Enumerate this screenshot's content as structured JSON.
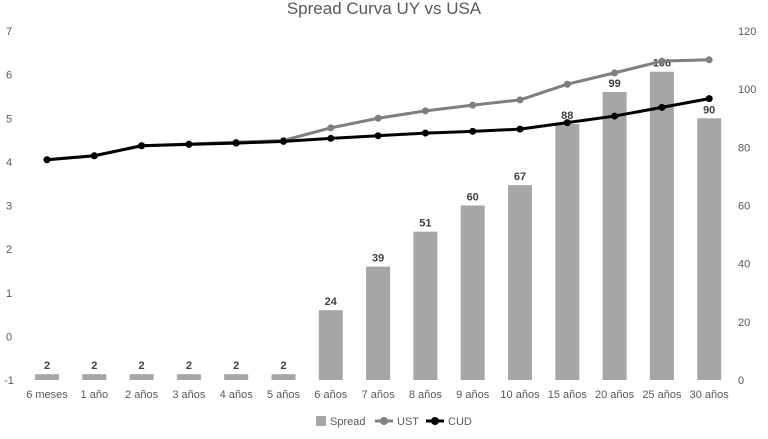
{
  "chart_data": {
    "type": "bar",
    "title": "Spread Curva UY vs USA",
    "categories": [
      "6 meses",
      "1 año",
      "2 años",
      "3 años",
      "4 años",
      "5 años",
      "6 años",
      "7 años",
      "8 años",
      "9 años",
      "10 años",
      "15 años",
      "20 años",
      "25 años",
      "30 años"
    ],
    "left_axis": {
      "ylim": [
        -1,
        7
      ],
      "ticks": [
        "-1",
        "0",
        "1",
        "2",
        "3",
        "4",
        "5",
        "6",
        "7"
      ]
    },
    "right_axis": {
      "ylim": [
        0,
        120
      ],
      "ticks": [
        "0",
        "20",
        "40",
        "60",
        "80",
        "100",
        "120"
      ]
    },
    "series": [
      {
        "name": "Spread",
        "kind": "bar",
        "axis": "right",
        "values": [
          2,
          2,
          2,
          2,
          2,
          2,
          24,
          39,
          51,
          60,
          67,
          88,
          99,
          106,
          90
        ],
        "labels": [
          "2",
          "2",
          "2",
          "2",
          "2",
          "2",
          "24",
          "39",
          "51",
          "60",
          "67",
          "88",
          "99",
          "106",
          "90"
        ],
        "color": "#a6a6a6"
      },
      {
        "name": "UST",
        "kind": "line",
        "axis": "left",
        "values": [
          4.05,
          4.14,
          4.37,
          4.41,
          4.45,
          4.49,
          4.78,
          5.0,
          5.17,
          5.3,
          5.42,
          5.78,
          6.04,
          6.31,
          6.34
        ],
        "color": "#7f7f7f"
      },
      {
        "name": "CUD",
        "kind": "line",
        "axis": "left",
        "values": [
          4.05,
          4.14,
          4.37,
          4.4,
          4.43,
          4.47,
          4.54,
          4.6,
          4.66,
          4.7,
          4.75,
          4.9,
          5.05,
          5.25,
          5.45
        ],
        "color": "#000000"
      }
    ],
    "legend": {
      "position": "bottom",
      "entries": [
        "Spread",
        "UST",
        "CUD"
      ]
    },
    "grid": false
  }
}
